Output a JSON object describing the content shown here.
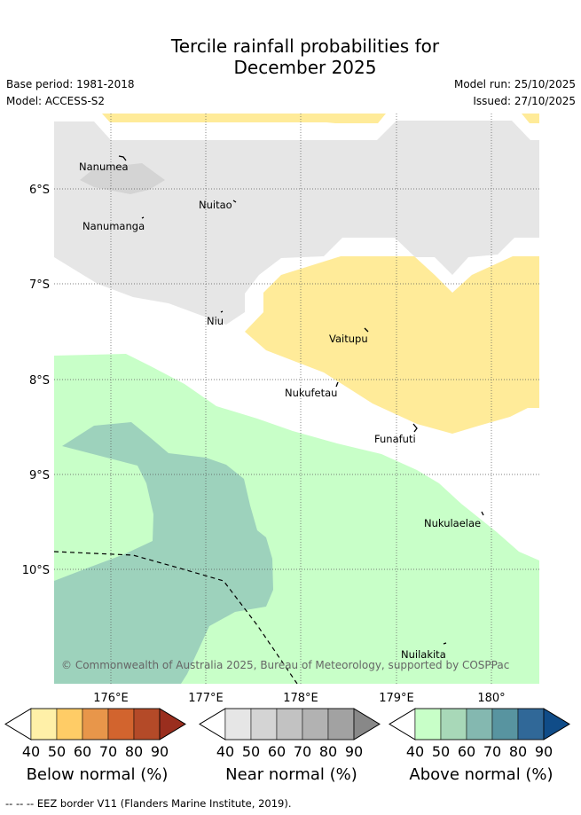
{
  "title": {
    "line1": "Tercile rainfall probabilities for",
    "line2": "December 2025"
  },
  "meta": {
    "base_period": "Base period: 1981-2018",
    "model": "Model: ACCESS-S2",
    "model_run": "Model run: 25/10/2025",
    "issued": "Issued: 27/10/2025"
  },
  "axes": {
    "latitude_labels": [
      "6°S",
      "7°S",
      "8°S",
      "9°S",
      "10°S"
    ],
    "longitude_labels": [
      "176°E",
      "177°E",
      "178°E",
      "179°E",
      "180°"
    ]
  },
  "places": [
    {
      "name": "Nanumea"
    },
    {
      "name": "Nuitao"
    },
    {
      "name": "Nanumanga"
    },
    {
      "name": "Niu"
    },
    {
      "name": "Vaitupu"
    },
    {
      "name": "Nukufetau"
    },
    {
      "name": "Funafuti"
    },
    {
      "name": "Nukulaelae"
    },
    {
      "name": "Nuilakita"
    }
  ],
  "copyright": "© Commonwealth of Australia 2025, Bureau of Meteorology, supported by COSPPac",
  "legends": [
    {
      "title": "Below normal (%)",
      "ticks": [
        "40",
        "50",
        "60",
        "70",
        "80",
        "90"
      ],
      "colors": [
        "#fff0a8",
        "#ffcc66",
        "#e8964a",
        "#d2642e",
        "#b44a28",
        "#9a2e1e"
      ]
    },
    {
      "title": "Near normal (%)",
      "ticks": [
        "40",
        "50",
        "60",
        "70",
        "80",
        "90"
      ],
      "colors": [
        "#e6e6e6",
        "#d4d4d4",
        "#c2c2c2",
        "#b2b2b2",
        "#a2a2a2",
        "#888888"
      ]
    },
    {
      "title": "Above normal (%)",
      "ticks": [
        "40",
        "50",
        "60",
        "70",
        "80",
        "90"
      ],
      "colors": [
        "#c8ffc8",
        "#a8d8b8",
        "#84b8b0",
        "#5894a0",
        "#306898",
        "#104c88"
      ]
    }
  ],
  "colors": {
    "near_40_50": "#e6e6e6",
    "near_50_60": "#d4d4d4",
    "below_40_50": "#ffeb99",
    "above_40_50": "#c8ffc8",
    "above_50_60": "#9dd2bc"
  },
  "footer": "--  --  -- EEZ border V11 (Flanders Marine Institute, 2019)."
}
